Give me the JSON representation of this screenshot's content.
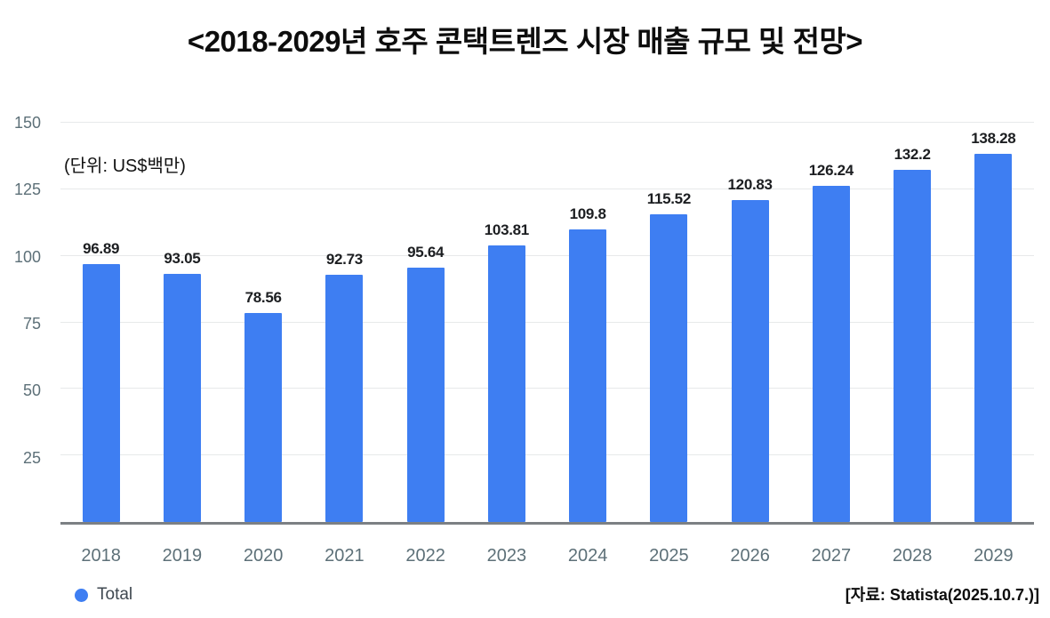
{
  "title": "<2018-2029년 호주 콘택트렌즈 시장 매출 규모 및 전망>",
  "unit_label": "(단위: US$백만)",
  "legend": {
    "label": "Total",
    "marker_color": "#3e7ef2"
  },
  "source": "[자료: Statista(2025.10.7.)]",
  "chart_data": {
    "type": "bar",
    "title": "<2018-2029년 호주 콘택트렌즈 시장 매출 규모 및 전망>",
    "categories": [
      "2018",
      "2019",
      "2020",
      "2021",
      "2022",
      "2023",
      "2024",
      "2025",
      "2026",
      "2027",
      "2028",
      "2029"
    ],
    "series": [
      {
        "name": "Total",
        "values": [
          96.89,
          93.05,
          78.56,
          92.73,
          95.64,
          103.81,
          109.8,
          115.52,
          120.83,
          126.24,
          132.2,
          138.28
        ]
      }
    ],
    "value_labels": [
      "96.89",
      "93.05",
      "78.56",
      "92.73",
      "95.64",
      "103.81",
      "109.8",
      "115.52",
      "120.83",
      "126.24",
      "132.2",
      "138.28"
    ],
    "xlabel": "",
    "ylabel": "US$백만",
    "ylim": [
      0,
      150
    ],
    "yticks": [
      25,
      50,
      75,
      100,
      125,
      150
    ],
    "grid": true,
    "legend_position": "bottom-left",
    "colors": {
      "bar": "#3e7ef2",
      "tick_label": "#5d7078",
      "value_label": "#1c1e21",
      "gridline": "#e7e9ea",
      "axis_line": "#7c8084",
      "title": "#0d0d0d"
    }
  }
}
